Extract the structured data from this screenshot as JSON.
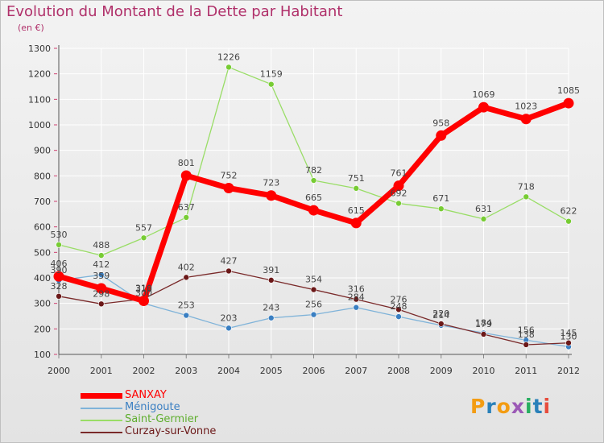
{
  "header": {
    "title": "Evolution du Montant de la Dette par Habitant",
    "subtitle": "(en €)"
  },
  "brand": {
    "text": "Proxiti",
    "letter_colors": [
      "#f39c12",
      "#2980b9",
      "#f39c12",
      "#9b59b6",
      "#27ae60",
      "#2980b9",
      "#e74c3c"
    ]
  },
  "colors": {
    "background_top": "#f3f3f3",
    "background_bottom": "#e3e3e3",
    "title": "#b0306a",
    "axis": "#555555",
    "grid": "#ffffff"
  },
  "chart_data": {
    "type": "line",
    "title": "Evolution du Montant de la Dette par Habitant",
    "subtitle": "(en €)",
    "xlabel": "",
    "ylabel": "",
    "x": [
      "2000",
      "2001",
      "2002",
      "2003",
      "2004",
      "2005",
      "2006",
      "2007",
      "2008",
      "2009",
      "2010",
      "2011",
      "2012"
    ],
    "ylim": [
      100,
      1300
    ],
    "yticks": [
      100,
      200,
      300,
      400,
      500,
      600,
      700,
      800,
      900,
      1000,
      1100,
      1200,
      1300
    ],
    "grid": true,
    "legend_position": "bottom-left",
    "series": [
      {
        "name": "SANXAY",
        "color": "#ff0000",
        "marker_color": "#ff0000",
        "values": [
          406,
          359,
          310,
          801,
          752,
          723,
          665,
          615,
          761,
          958,
          1069,
          1023,
          1085
        ],
        "labels": [
          "406",
          "359",
          "310",
          "801",
          "752",
          "723",
          "665",
          "615",
          "761",
          "958",
          "1069",
          "1023",
          "1085"
        ]
      },
      {
        "name": "Ménigoute",
        "color": "#7fb3d9",
        "marker_color": "#3a7fc2",
        "values": [
          390,
          412,
          300,
          253,
          203,
          243,
          256,
          284,
          248,
          214,
          184,
          156,
          130
        ],
        "labels": [
          "390",
          "412",
          "300",
          "253",
          "203",
          "243",
          "256",
          "284",
          "248",
          "214",
          "184",
          "156",
          "130"
        ]
      },
      {
        "name": "Saint-Germier",
        "color": "#99dd66",
        "marker_color": "#77cc33",
        "values": [
          530,
          488,
          557,
          637,
          1226,
          1159,
          782,
          751,
          692,
          671,
          631,
          718,
          622
        ],
        "labels": [
          "530",
          "488",
          "557",
          "637",
          "1226",
          "1159",
          "782",
          "751",
          "692",
          "671",
          "631",
          "718",
          "622"
        ]
      },
      {
        "name": "Curzay-sur-Vonne",
        "color": "#7a2a2a",
        "marker_color": "#6b1818",
        "values": [
          328,
          298,
          318,
          402,
          427,
          391,
          354,
          316,
          276,
          220,
          179,
          138,
          145
        ],
        "labels": [
          "328",
          "298",
          "318",
          "402",
          "427",
          "391",
          "354",
          "316",
          "276",
          "220",
          "179",
          "138",
          "145"
        ]
      }
    ]
  }
}
